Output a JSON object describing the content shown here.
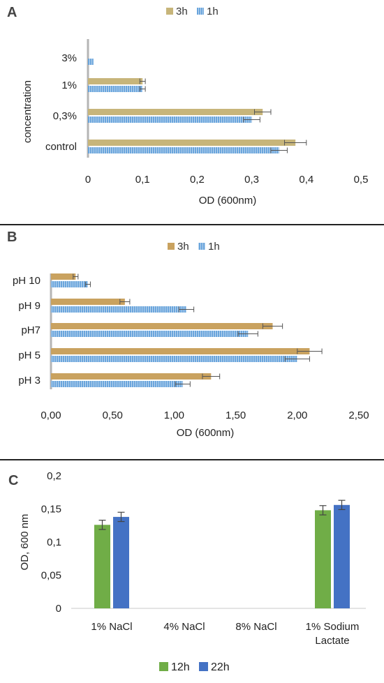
{
  "chart_data": [
    {
      "panel": "A",
      "type": "bar",
      "orientation": "horizontal",
      "categories": [
        "control",
        "0,3%",
        "1%",
        "3%"
      ],
      "series": [
        {
          "name": "3h",
          "values": [
            0.38,
            0.32,
            0.1,
            0.0
          ],
          "errors": [
            0.02,
            0.015,
            0.005,
            0.0
          ]
        },
        {
          "name": "1h",
          "values": [
            0.35,
            0.3,
            0.1,
            0.01
          ],
          "errors": [
            0.015,
            0.015,
            0.005,
            0.0
          ]
        }
      ],
      "xlabel": "OD (600nm)",
      "ylabel": "concentration",
      "xlim": [
        0,
        0.5
      ],
      "xticks": [
        "0",
        "0,1",
        "0,2",
        "0,3",
        "0,4",
        "0,5"
      ],
      "legend": "top",
      "colors": {
        "3h": "#c7b57a",
        "1h": "#6aa5dc"
      }
    },
    {
      "panel": "B",
      "type": "bar",
      "orientation": "horizontal",
      "categories": [
        "pH 3",
        "pH 5",
        "pH7",
        "pH 9",
        "pH 10"
      ],
      "series": [
        {
          "name": "3h",
          "values": [
            1.3,
            2.1,
            1.8,
            0.6,
            0.2
          ],
          "errors": [
            0.07,
            0.1,
            0.08,
            0.04,
            0.02
          ]
        },
        {
          "name": "1h",
          "values": [
            1.07,
            2.0,
            1.6,
            1.1,
            0.3
          ],
          "errors": [
            0.06,
            0.1,
            0.08,
            0.06,
            0.02
          ]
        }
      ],
      "xlabel": "OD (600nm)",
      "ylabel": "",
      "xlim": [
        0,
        2.5
      ],
      "xticks": [
        "0,00",
        "0,50",
        "1,00",
        "1,50",
        "2,00",
        "2,50"
      ],
      "legend": "top",
      "colors": {
        "3h": "#c9a25f",
        "1h": "#6aa5dc"
      }
    },
    {
      "panel": "C",
      "type": "bar",
      "orientation": "vertical",
      "categories": [
        "1% NaCl",
        "4% NaCl",
        "8% NaCl",
        "1% Sodium Lactate"
      ],
      "series": [
        {
          "name": "12h",
          "values": [
            0.126,
            0,
            0,
            0.148
          ],
          "errors": [
            0.007,
            0,
            0,
            0.007
          ]
        },
        {
          "name": "22h",
          "values": [
            0.138,
            0,
            0,
            0.156
          ],
          "errors": [
            0.007,
            0,
            0,
            0.007
          ]
        }
      ],
      "xlabel": "",
      "ylabel": "OD, 600 nm",
      "ylim": [
        0,
        0.2
      ],
      "yticks": [
        "0",
        "0,05",
        "0,1",
        "0,15",
        "0,2"
      ],
      "legend": "bottom",
      "colors": {
        "12h": "#70ad47",
        "22h": "#4472c4"
      }
    }
  ]
}
